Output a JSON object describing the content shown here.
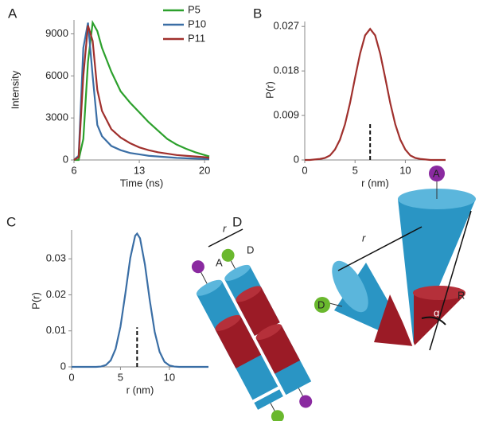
{
  "chart_data": [
    {
      "type": "line",
      "panel_label": "A",
      "x_label": "Time (ns)",
      "y_label": "Intensity",
      "x": [
        6,
        6.5,
        7,
        7.5,
        8,
        8.5,
        9,
        10,
        11,
        12,
        13,
        14,
        15,
        16,
        17,
        18,
        19,
        20,
        20.5
      ],
      "series": [
        {
          "name": "P5",
          "color": "#2ca02c",
          "values": [
            0,
            0,
            1500,
            7000,
            9800,
            9200,
            8000,
            6300,
            4900,
            4100,
            3400,
            2700,
            2100,
            1500,
            1100,
            800,
            550,
            350,
            250
          ]
        },
        {
          "name": "P10",
          "color": "#3a6ea5",
          "values": [
            0,
            300,
            8000,
            9800,
            6000,
            2500,
            1700,
            1000,
            700,
            500,
            400,
            300,
            250,
            200,
            150,
            120,
            100,
            80,
            60
          ]
        },
        {
          "name": "P11",
          "color": "#a0302d",
          "values": [
            0,
            200,
            6000,
            9600,
            8500,
            5000,
            3500,
            2200,
            1600,
            1200,
            900,
            700,
            550,
            450,
            350,
            300,
            250,
            200,
            150
          ]
        }
      ],
      "xlim": [
        6,
        20.5
      ],
      "xticks": [
        6,
        13,
        20
      ],
      "ylim": [
        0,
        10000
      ],
      "yticks": [
        0,
        3000,
        6000,
        9000
      ],
      "legend": "upper right"
    },
    {
      "type": "line",
      "panel_label": "B",
      "x_label": "r (nm)",
      "y_label": "P(r)",
      "color": "#a0302d",
      "x": [
        0,
        0.5,
        1,
        1.5,
        2,
        2.5,
        3,
        3.5,
        4,
        4.5,
        5,
        5.5,
        6,
        6.5,
        7,
        7.5,
        8,
        8.5,
        9,
        9.5,
        10,
        10.5,
        11,
        11.5,
        12,
        12.5,
        13,
        13.5,
        14
      ],
      "values": [
        0,
        0,
        0.0001,
        0.0002,
        0.0004,
        0.0009,
        0.0021,
        0.0041,
        0.0072,
        0.0115,
        0.0166,
        0.0215,
        0.0252,
        0.0265,
        0.0252,
        0.0215,
        0.0166,
        0.0115,
        0.0072,
        0.0041,
        0.0021,
        0.0009,
        0.0004,
        0.0002,
        0.0001,
        0,
        0,
        0,
        0
      ],
      "mean_line": {
        "x": 6.5,
        "y": [
          0,
          0.0075
        ]
      },
      "xlim": [
        0,
        14
      ],
      "xticks": [
        0,
        5,
        10
      ],
      "ylim": [
        0,
        0.028
      ],
      "yticks": [
        0,
        0.009,
        0.018,
        0.027
      ]
    },
    {
      "type": "line",
      "panel_label": "C",
      "x_label": "r (nm)",
      "y_label": "P(r)",
      "color": "#3a6ea5",
      "x": [
        0,
        1,
        2,
        2.5,
        3,
        3.5,
        4,
        4.5,
        5,
        5.5,
        6,
        6.5,
        6.7,
        7,
        7.5,
        8,
        8.5,
        9,
        9.5,
        10,
        10.5,
        11,
        12,
        13,
        14
      ],
      "values": [
        0,
        0,
        0,
        0,
        0.0001,
        0.0005,
        0.0018,
        0.005,
        0.0112,
        0.0204,
        0.0302,
        0.0364,
        0.037,
        0.0357,
        0.0284,
        0.0184,
        0.0097,
        0.0042,
        0.0014,
        0.0004,
        0.0001,
        0,
        0,
        0,
        0
      ],
      "mean_line": {
        "x": 6.7,
        "y": [
          0,
          0.011
        ]
      },
      "xlim": [
        0,
        14
      ],
      "xticks": [
        0,
        5,
        10
      ],
      "ylim": [
        0,
        0.038
      ],
      "yticks": [
        0,
        0.01,
        0.02,
        0.03
      ]
    }
  ],
  "diagram": {
    "panel_label": "D",
    "left": {
      "distance": "r",
      "acceptor": "A",
      "donor": "D"
    },
    "right": {
      "distance": "r",
      "acceptor": "A",
      "donor": "D",
      "length": "R",
      "angle": "α"
    }
  }
}
